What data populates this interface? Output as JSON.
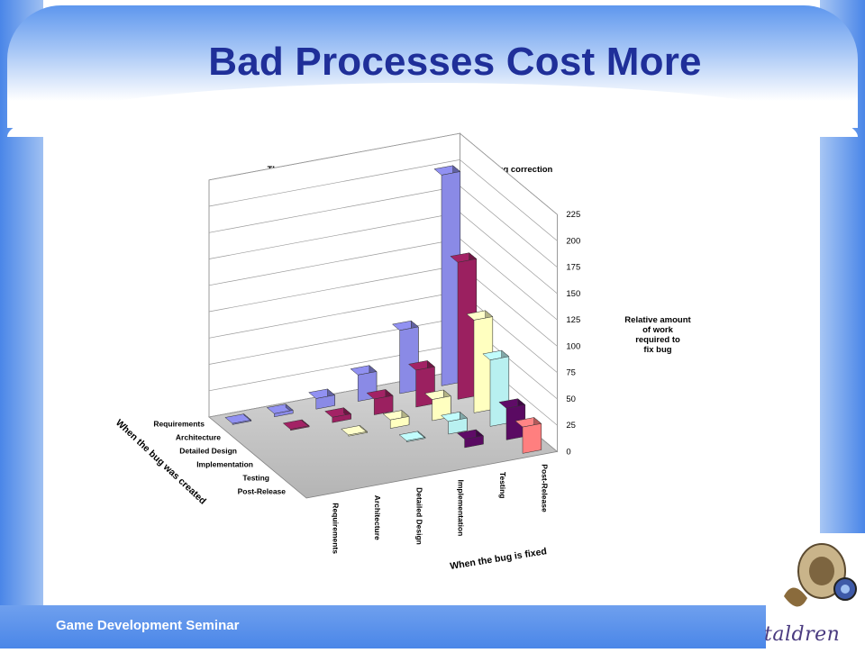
{
  "slide": {
    "title": "Bad Processes Cost More",
    "footer": "Game Development Seminar",
    "logo_text": "taldren"
  },
  "colors": {
    "accent": "#4a86e8",
    "title": "#1f2f99",
    "series": [
      "#8a8ae6",
      "#9b2060",
      "#ffffc0",
      "#b8f0f0",
      "#5a0a62",
      "#ff7f7f"
    ]
  },
  "chart_data": {
    "type": "bar3d",
    "title": "The increase in cost due to a delay in bug creation and bug correction",
    "x_axis_title": "When the bug is fixed",
    "y_axis_title": "When the bug was created",
    "z_axis_title": "Relative amount of work required to fix bug",
    "x_categories": [
      "Requirements",
      "Architecture",
      "Detailed Design",
      "Implementation",
      "Testing",
      "Post-Release"
    ],
    "y_categories": [
      "Requirements",
      "Architecture",
      "Detailed Design",
      "Implementation",
      "Testing",
      "Post-Release"
    ],
    "zlim": [
      0,
      225
    ],
    "z_ticks": [
      "0",
      "25",
      "50",
      "75",
      "100",
      "125",
      "150",
      "175",
      "200",
      "225"
    ],
    "series": [
      {
        "name": "Requirements",
        "values": [
          1,
          3,
          10,
          25,
          60,
          200
        ]
      },
      {
        "name": "Architecture",
        "values": [
          null,
          1,
          5,
          15,
          35,
          130
        ]
      },
      {
        "name": "Detailed Design",
        "values": [
          null,
          null,
          1,
          8,
          20,
          88
        ]
      },
      {
        "name": "Implementation",
        "values": [
          null,
          null,
          null,
          1,
          12,
          63
        ]
      },
      {
        "name": "Testing",
        "values": [
          null,
          null,
          null,
          null,
          8,
          30
        ]
      },
      {
        "name": "Post-Release",
        "values": [
          null,
          null,
          null,
          null,
          null,
          25
        ]
      }
    ],
    "grid": true
  }
}
